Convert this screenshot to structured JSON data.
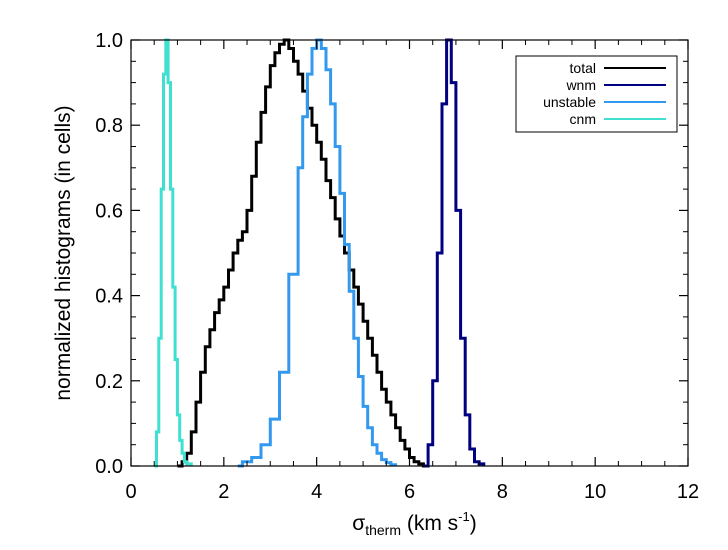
{
  "chart_data": {
    "type": "line",
    "title": "",
    "xlabel": {
      "main": "σ",
      "sub": "therm",
      "units": " (km s",
      "sup": "-1",
      "close": ")"
    },
    "ylabel": "normalized histograms (in cells)",
    "xlim": [
      0,
      12
    ],
    "ylim": [
      0,
      1.0
    ],
    "xticks": [
      "0",
      "2",
      "4",
      "6",
      "8",
      "10",
      "12"
    ],
    "yticks": [
      "0.0",
      "0.2",
      "0.4",
      "0.6",
      "0.8",
      "1.0"
    ],
    "grid": false,
    "legend_position": "top-right",
    "series": [
      {
        "name": "total",
        "color": "#000000",
        "x": [
          1.0,
          1.1,
          1.2,
          1.3,
          1.4,
          1.5,
          1.6,
          1.7,
          1.8,
          1.9,
          2.0,
          2.1,
          2.2,
          2.3,
          2.4,
          2.5,
          2.6,
          2.7,
          2.8,
          2.9,
          3.0,
          3.1,
          3.2,
          3.3,
          3.4,
          3.5,
          3.6,
          3.7,
          3.8,
          3.9,
          4.0,
          4.1,
          4.2,
          4.3,
          4.4,
          4.5,
          4.6,
          4.7,
          4.8,
          4.9,
          5.0,
          5.1,
          5.2,
          5.3,
          5.4,
          5.5,
          5.6,
          5.7,
          5.8,
          5.9,
          6.0,
          6.1,
          6.2,
          6.3,
          6.4
        ],
        "y": [
          0.0,
          0.01,
          0.03,
          0.08,
          0.15,
          0.22,
          0.28,
          0.32,
          0.36,
          0.39,
          0.42,
          0.46,
          0.5,
          0.53,
          0.55,
          0.6,
          0.68,
          0.76,
          0.83,
          0.89,
          0.94,
          0.97,
          0.99,
          1.0,
          0.98,
          0.95,
          0.92,
          0.88,
          0.84,
          0.8,
          0.76,
          0.72,
          0.67,
          0.63,
          0.58,
          0.54,
          0.5,
          0.46,
          0.42,
          0.38,
          0.34,
          0.3,
          0.26,
          0.22,
          0.18,
          0.15,
          0.12,
          0.09,
          0.06,
          0.04,
          0.02,
          0.01,
          0.005,
          0.0,
          0.0
        ]
      },
      {
        "name": "wnm",
        "color": "#000080",
        "x": [
          6.3,
          6.4,
          6.5,
          6.6,
          6.7,
          6.8,
          6.9,
          7.0,
          7.1,
          7.2,
          7.3,
          7.4,
          7.5,
          7.6
        ],
        "y": [
          0.0,
          0.05,
          0.2,
          0.5,
          0.85,
          1.0,
          0.9,
          0.6,
          0.3,
          0.12,
          0.04,
          0.01,
          0.005,
          0.0
        ]
      },
      {
        "name": "unstable",
        "color": "#3399ee",
        "x": [
          2.3,
          2.4,
          2.6,
          2.8,
          3.0,
          3.2,
          3.4,
          3.6,
          3.7,
          3.8,
          3.9,
          4.0,
          4.1,
          4.2,
          4.3,
          4.4,
          4.5,
          4.6,
          4.7,
          4.8,
          4.9,
          5.0,
          5.1,
          5.2,
          5.3,
          5.4,
          5.5,
          5.6,
          5.7
        ],
        "y": [
          0.0,
          0.01,
          0.02,
          0.05,
          0.11,
          0.22,
          0.45,
          0.7,
          0.82,
          0.92,
          0.98,
          1.0,
          0.98,
          0.93,
          0.85,
          0.75,
          0.64,
          0.52,
          0.41,
          0.3,
          0.21,
          0.14,
          0.09,
          0.05,
          0.03,
          0.015,
          0.008,
          0.003,
          0.0
        ]
      },
      {
        "name": "cnm",
        "color": "#40e0d0",
        "x": [
          0.5,
          0.55,
          0.6,
          0.65,
          0.7,
          0.75,
          0.8,
          0.85,
          0.9,
          0.95,
          1.0,
          1.05,
          1.1,
          1.15,
          1.2,
          1.3
        ],
        "y": [
          0.0,
          0.08,
          0.3,
          0.65,
          0.92,
          1.0,
          0.9,
          0.65,
          0.42,
          0.25,
          0.12,
          0.06,
          0.03,
          0.01,
          0.005,
          0.0
        ]
      }
    ]
  }
}
